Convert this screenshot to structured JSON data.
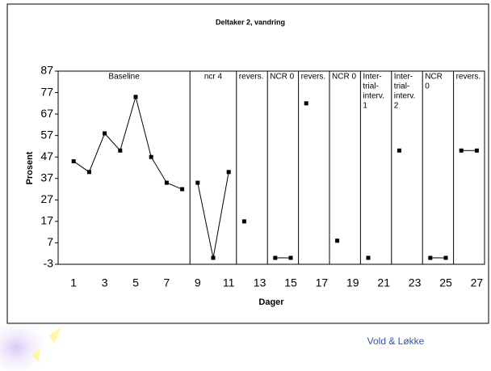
{
  "chart_data": {
    "type": "phase-line",
    "title": "Deltaker 2, vandring",
    "x_label": "Dager",
    "y_label": "Prosent",
    "xlim": [
      0,
      27.5
    ],
    "ylim": [
      -3,
      87
    ],
    "xticks": [
      1,
      3,
      5,
      7,
      9,
      11,
      13,
      15,
      17,
      19,
      21,
      23,
      25,
      27
    ],
    "yticks": [
      -3,
      7,
      17,
      27,
      37,
      47,
      57,
      67,
      77,
      87
    ],
    "color": "#000000",
    "phase_lines": [
      8.5,
      11.5,
      13.5,
      15.5,
      17.5,
      19.5,
      21.5,
      23.5,
      25.5
    ],
    "phases": [
      {
        "label": [
          "Baseline"
        ],
        "x": [
          1,
          2,
          3,
          4,
          5,
          6,
          7,
          8
        ],
        "values": [
          45,
          40,
          58,
          50,
          75,
          47,
          35,
          32
        ]
      },
      {
        "label": [
          "ncr 4"
        ],
        "x": [
          9,
          10,
          11
        ],
        "values": [
          35,
          0,
          40
        ]
      },
      {
        "label": [
          "revers."
        ],
        "x": [
          12
        ],
        "values": [
          17
        ]
      },
      {
        "label": [
          "NCR 0"
        ],
        "x": [
          14,
          15
        ],
        "values": [
          0,
          0
        ]
      },
      {
        "label": [
          "revers."
        ],
        "x": [
          16
        ],
        "values": [
          72
        ]
      },
      {
        "label": [
          "NCR 0"
        ],
        "x": [
          18
        ],
        "values": [
          8
        ]
      },
      {
        "label": [
          "Inter-",
          "trial-",
          "interv.",
          "1"
        ],
        "x": [
          20
        ],
        "values": [
          0
        ]
      },
      {
        "label": [
          "Inter-",
          "trial-",
          "interv.",
          "2"
        ],
        "x": [
          22
        ],
        "values": [
          50
        ]
      },
      {
        "label": [
          "NCR",
          "0"
        ],
        "x": [
          24,
          25
        ],
        "values": [
          0,
          0
        ]
      },
      {
        "label": [
          "revers."
        ],
        "x": [
          26,
          27
        ],
        "values": [
          50,
          50
        ]
      }
    ]
  },
  "footer": "Vold & Løkke"
}
